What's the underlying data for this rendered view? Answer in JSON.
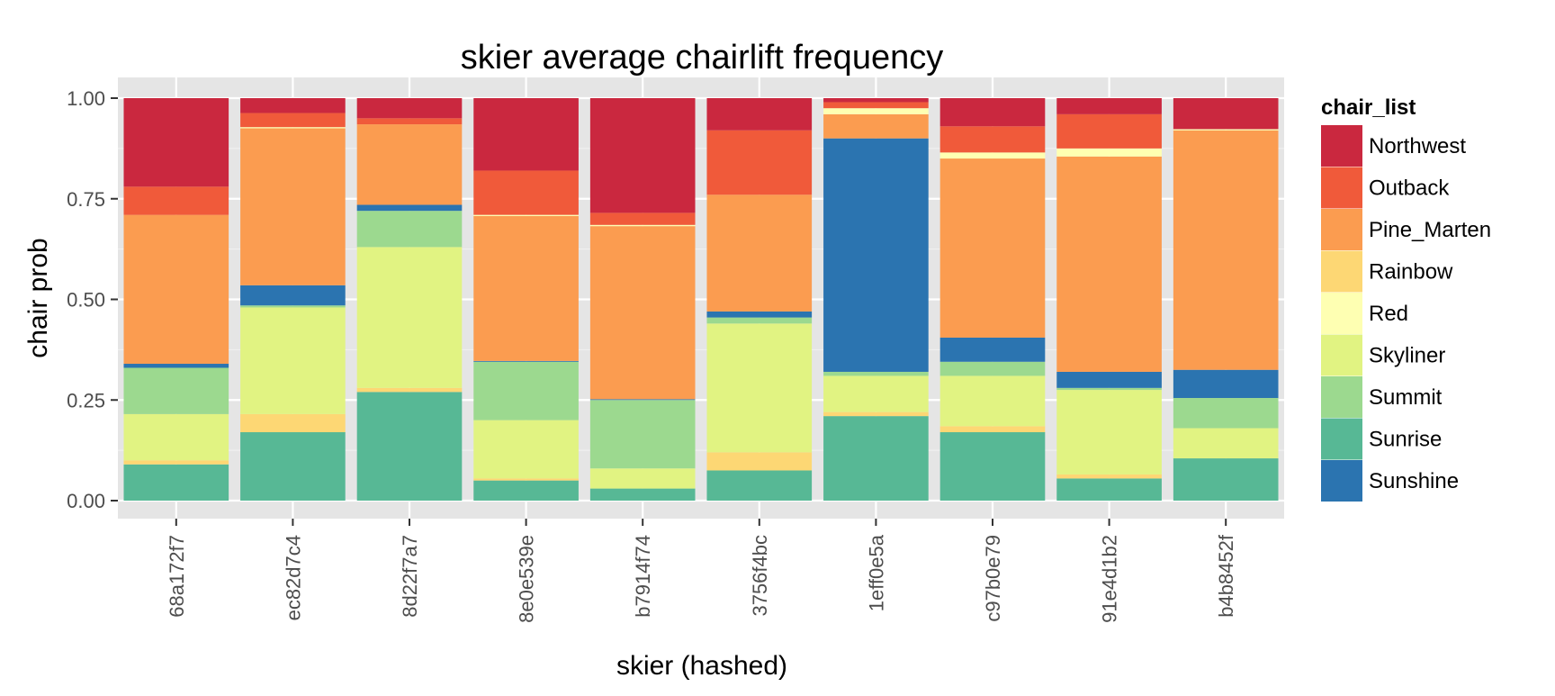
{
  "chart_data": {
    "type": "bar",
    "stacked": true,
    "title": "skier average chairlift frequency",
    "xlabel": "skier (hashed)",
    "ylabel": "chair prob",
    "ylim": [
      0,
      1
    ],
    "yticks": [
      "0.00",
      "0.25",
      "0.50",
      "0.75",
      "1.00"
    ],
    "yticks_values": [
      0,
      0.25,
      0.5,
      0.75,
      1.0
    ],
    "categories": [
      "68a172f7",
      "ec82d7c4",
      "8d22f7a7",
      "8e0e539e",
      "b7914f74",
      "3756f4bc",
      "1eff0e5a",
      "c97b0e79",
      "91e4d1b2",
      "b4b8452f"
    ],
    "legend": {
      "title": "chair_list",
      "position": "right"
    },
    "grid": true,
    "series": [
      {
        "name": "Sunrise",
        "color": "#57b895",
        "values": [
          0.09,
          0.17,
          0.27,
          0.05,
          0.03,
          0.075,
          0.21,
          0.17,
          0.055,
          0.105
        ]
      },
      {
        "name": "Rainbow",
        "color": "#fdd774",
        "values": [
          0.01,
          0.045,
          0.01,
          0.005,
          0.0,
          0.045,
          0.01,
          0.015,
          0.01,
          0.0
        ]
      },
      {
        "name": "Skyliner",
        "color": "#e1f382",
        "values": [
          0.115,
          0.265,
          0.35,
          0.145,
          0.05,
          0.32,
          0.09,
          0.125,
          0.21,
          0.075
        ]
      },
      {
        "name": "Summit",
        "color": "#9cd98f",
        "values": [
          0.115,
          0.005,
          0.09,
          0.145,
          0.17,
          0.015,
          0.01,
          0.035,
          0.005,
          0.075
        ]
      },
      {
        "name": "Sunshine",
        "color": "#2b74b0",
        "values": [
          0.01,
          0.05,
          0.015,
          0.002,
          0.002,
          0.015,
          0.58,
          0.06,
          0.04,
          0.07
        ]
      },
      {
        "name": "Pine_Marten",
        "color": "#fb9c50",
        "values": [
          0.37,
          0.39,
          0.2,
          0.36,
          0.43,
          0.29,
          0.06,
          0.445,
          0.535,
          0.595
        ]
      },
      {
        "name": "Red",
        "color": "#feffb2",
        "values": [
          0.0,
          0.003,
          0.0,
          0.003,
          0.003,
          0.0,
          0.015,
          0.015,
          0.02,
          0.003
        ]
      },
      {
        "name": "Outback",
        "color": "#f05a3a",
        "values": [
          0.07,
          0.035,
          0.015,
          0.11,
          0.03,
          0.16,
          0.015,
          0.065,
          0.085,
          0.0
        ]
      },
      {
        "name": "Northwest",
        "color": "#ca283f",
        "values": [
          0.22,
          0.037,
          0.05,
          0.18,
          0.285,
          0.08,
          0.01,
          0.07,
          0.04,
          0.077
        ]
      }
    ],
    "legend_order": [
      "Northwest",
      "Outback",
      "Pine_Marten",
      "Rainbow",
      "Red",
      "Skyliner",
      "Summit",
      "Sunrise",
      "Sunshine"
    ]
  }
}
